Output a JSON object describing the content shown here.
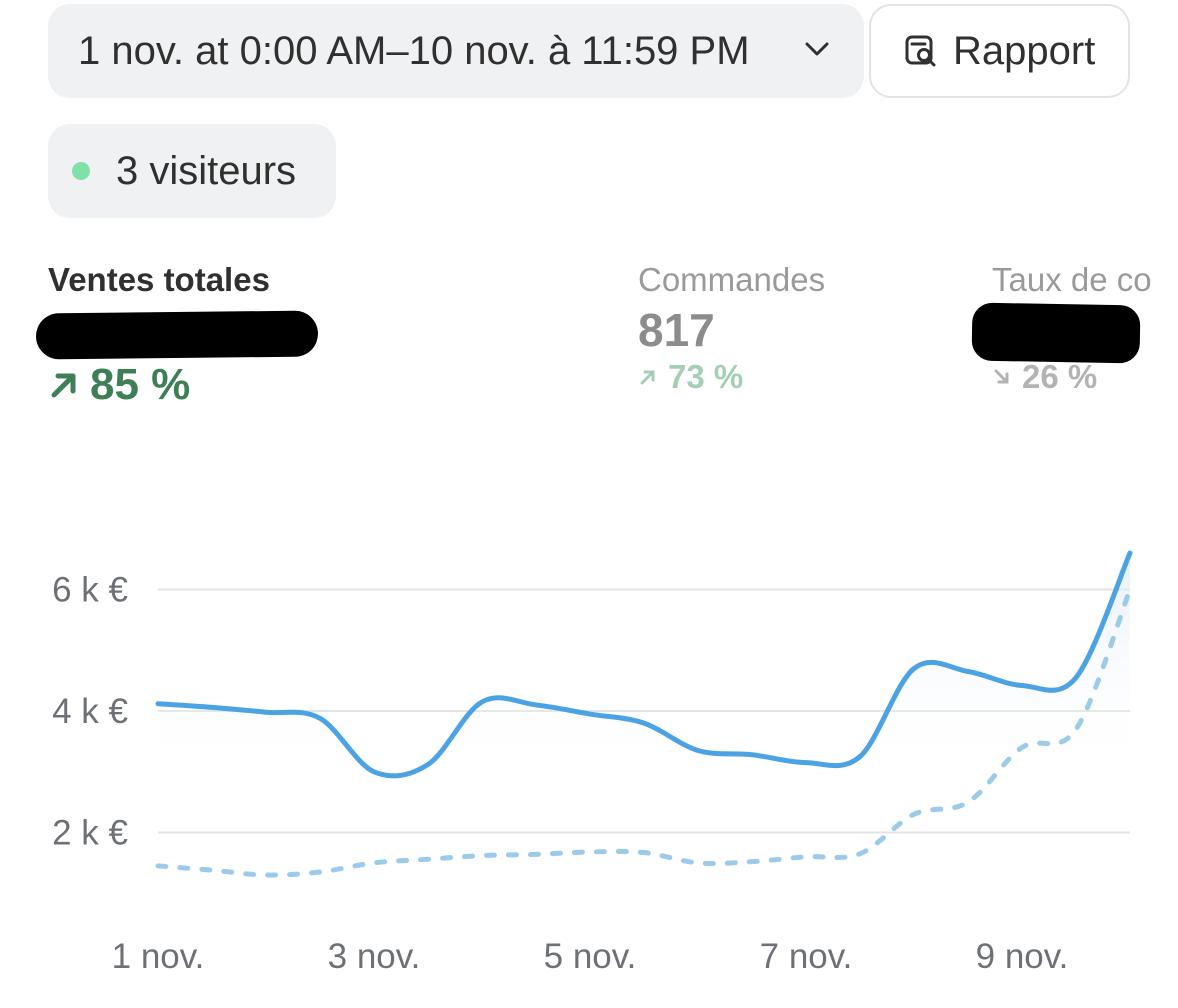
{
  "date_range": {
    "label": "1 nov. at 0:00 AM–10 nov. à 11:59 PM"
  },
  "report_button": {
    "label": "Rapport",
    "icon": "report-search-icon"
  },
  "visitors": {
    "label": "3 visiteurs",
    "dot_color": "#7ee2a8"
  },
  "metrics": [
    {
      "label": "Ventes totales",
      "value": "",
      "change": "85 %",
      "direction": "up"
    },
    {
      "label": "Commandes",
      "value": "817",
      "change": "73 %",
      "direction": "up"
    },
    {
      "label": "Taux de co",
      "value": "",
      "change": "26 %",
      "direction": "down"
    }
  ],
  "colors": {
    "primary_series": "#4ba3e3",
    "comparison_series": "#9ccbe9",
    "positive": "#3f7f58",
    "grid": "#e3e3e3"
  },
  "chart_data": {
    "type": "line",
    "title": "",
    "xlabel": "",
    "ylabel": "",
    "x_tick_labels": [
      "1 nov.",
      "3 nov.",
      "5 nov.",
      "7 nov.",
      "9 nov."
    ],
    "y_tick_labels": [
      "2 k €",
      "4 k €",
      "6 k €"
    ],
    "y_tick_values": [
      2000,
      4000,
      6000
    ],
    "ylim": [
      0,
      7000
    ],
    "x": [
      1,
      1.5,
      2,
      2.5,
      3,
      3.5,
      4,
      4.5,
      5,
      5.5,
      6,
      6.5,
      7,
      7.5,
      8,
      8.5,
      9,
      9.5,
      10
    ],
    "grid": true,
    "series": [
      {
        "style": "solid",
        "area_fill": true,
        "values": [
          4120,
          4060,
          3980,
          3880,
          3000,
          3120,
          4150,
          4100,
          3950,
          3800,
          3350,
          3280,
          3150,
          3250,
          4700,
          4650,
          4420,
          4550,
          6600
        ]
      },
      {
        "style": "dashed",
        "values": [
          1450,
          1380,
          1300,
          1350,
          1500,
          1560,
          1620,
          1640,
          1680,
          1670,
          1500,
          1520,
          1600,
          1650,
          2300,
          2500,
          3400,
          3700,
          6000
        ]
      }
    ]
  }
}
